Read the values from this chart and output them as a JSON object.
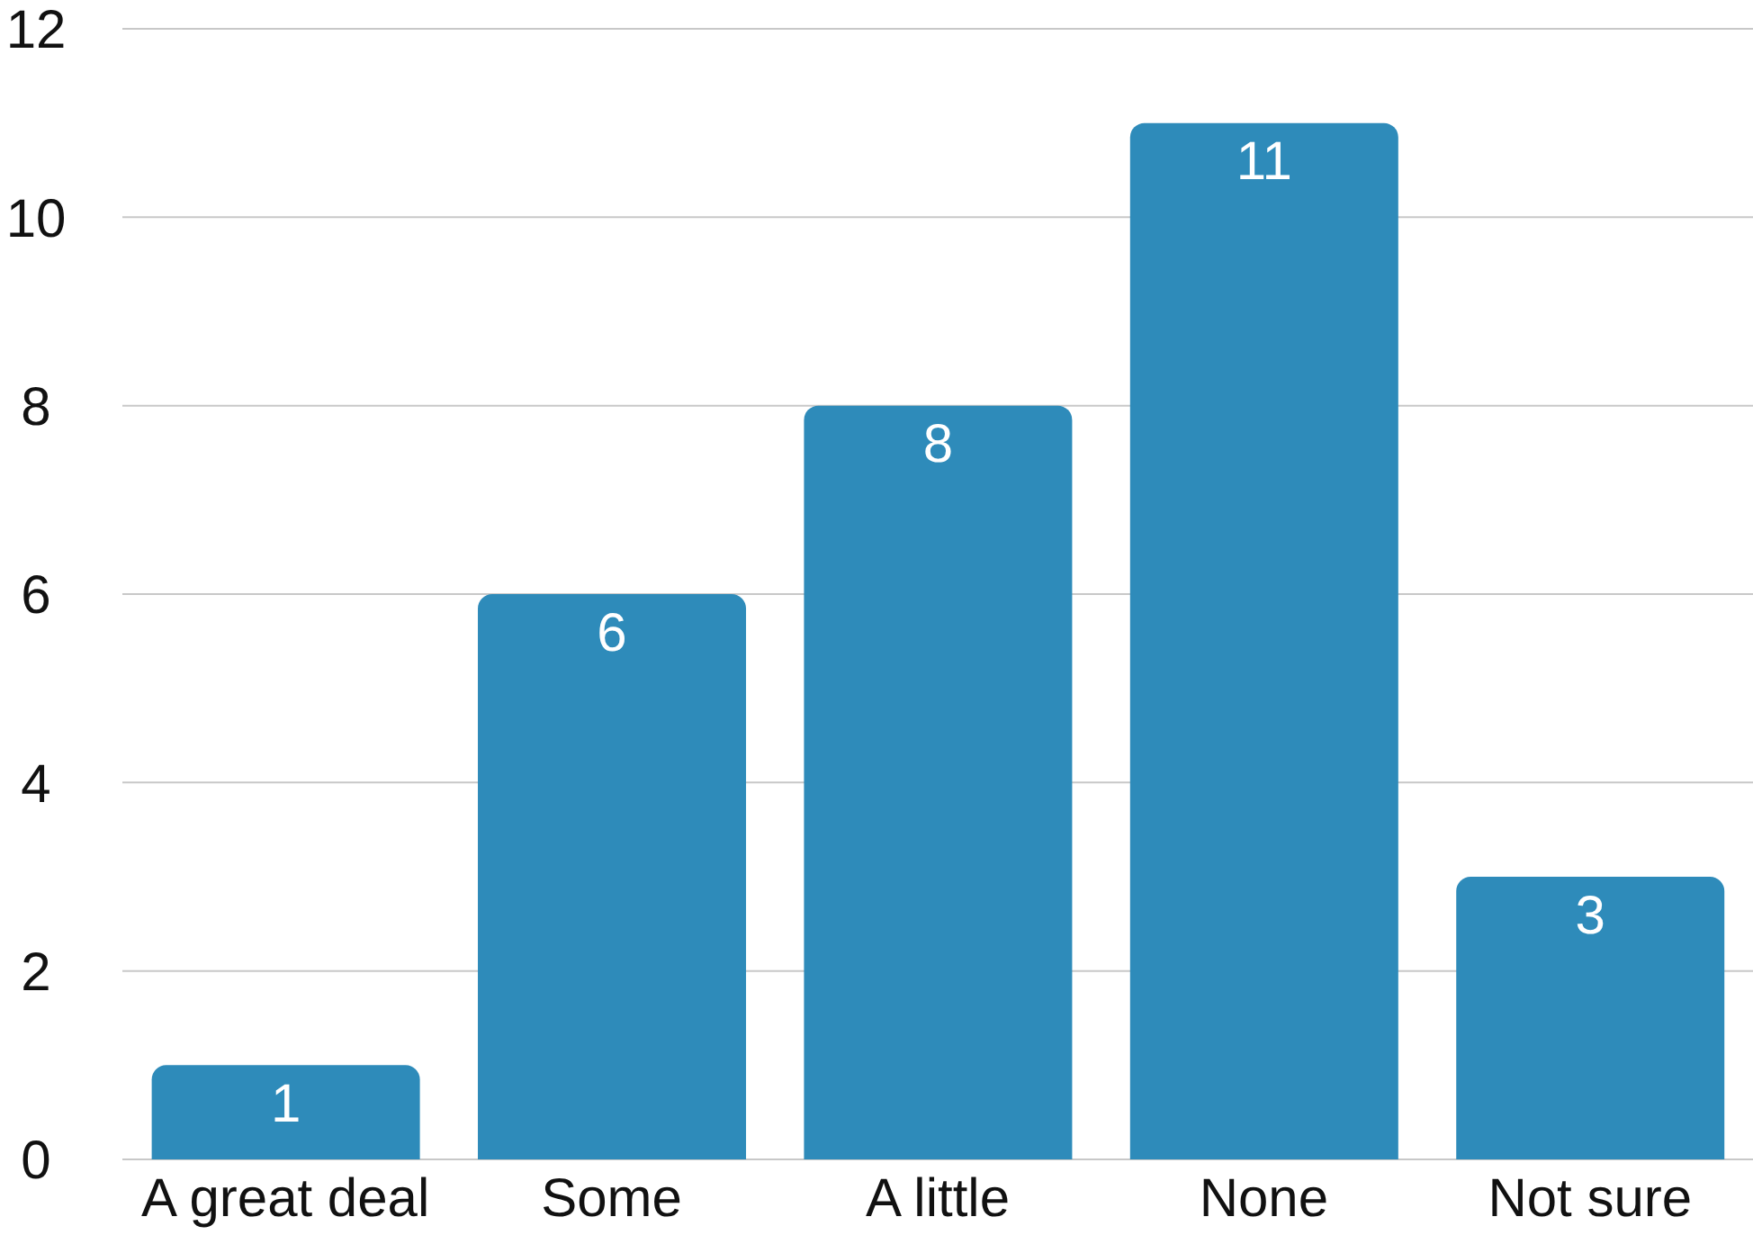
{
  "chart_data": {
    "type": "bar",
    "categories": [
      "A great deal",
      "Some",
      "A little",
      "None",
      "Not sure"
    ],
    "values": [
      1,
      6,
      8,
      11,
      3
    ],
    "color": "#2e8bba",
    "ylim": [
      0,
      12
    ],
    "yticks": [
      0,
      2,
      4,
      6,
      8,
      10,
      12
    ],
    "grid": "y",
    "data_labels": true
  }
}
